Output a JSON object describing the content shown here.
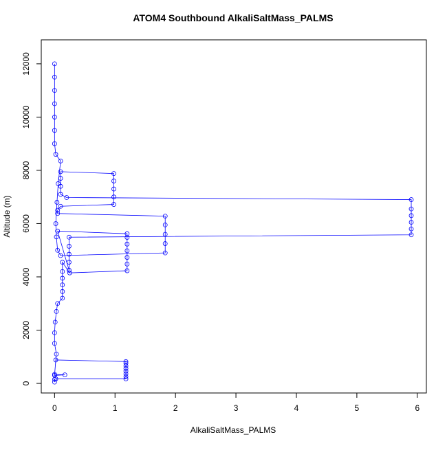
{
  "chart_data": {
    "type": "scatter",
    "title": "ATOM4 Southbound AlkaliSaltMass_PALMS",
    "x_label": "AlkaliSaltMass_PALMS",
    "y_label": "Altitude (m)",
    "connect_points": true,
    "color": "#0000ff",
    "xlim": [
      -0.22,
      6.15
    ],
    "ylim": [
      -360,
      12900
    ],
    "xticks": [
      0,
      1,
      2,
      3,
      4,
      5,
      6
    ],
    "yticks": [
      0,
      2000,
      4000,
      6000,
      8000,
      10000,
      12000
    ],
    "x": [
      0,
      0,
      0.02,
      1.18,
      1.18,
      1.18,
      1.18,
      1.18,
      1.18,
      1.18,
      1.18,
      0.02,
      0,
      0.17,
      0,
      0.03,
      0,
      0,
      0.01,
      0.03,
      0.05,
      0.13,
      0.13,
      0.13,
      0.13,
      0.13,
      0.13,
      0.25,
      1.2,
      1.2,
      1.2,
      1.2,
      1.2,
      1.2,
      1.2,
      0.05,
      0.24,
      0.24,
      0.24,
      0.24,
      0.24,
      5.9,
      5.9,
      5.9,
      5.9,
      5.9,
      5.9,
      0.2,
      0.1,
      0.1,
      0.1,
      0.1,
      0.98,
      0.98,
      0.98,
      0.98,
      0.98,
      0.1,
      0.05,
      0.05,
      1.83,
      1.83,
      1.83,
      1.83,
      1.83,
      0.1,
      0.05,
      0.03,
      0.02,
      0.04,
      0.06,
      0.1,
      0.02,
      0,
      0,
      0,
      0,
      0,
      0,
      0
    ],
    "y": [
      50,
      150,
      170,
      170,
      260,
      360,
      460,
      560,
      660,
      760,
      820,
      880,
      300,
      320,
      340,
      1100,
      1500,
      1900,
      2300,
      2700,
      3000,
      3200,
      3450,
      3700,
      3950,
      4200,
      4550,
      4150,
      4230,
      4480,
      4730,
      4980,
      5230,
      5480,
      5620,
      5720,
      4250,
      4550,
      4850,
      5150,
      5490,
      5580,
      5800,
      6050,
      6300,
      6550,
      6900,
      6980,
      7100,
      7400,
      7700,
      7950,
      7880,
      7600,
      7300,
      7000,
      6720,
      6650,
      6500,
      6380,
      6280,
      5950,
      5600,
      5250,
      4900,
      4800,
      5000,
      5500,
      6000,
      6800,
      7500,
      8350,
      8600,
      9000,
      9500,
      10000,
      10500,
      11000,
      11500,
      12000
    ]
  }
}
